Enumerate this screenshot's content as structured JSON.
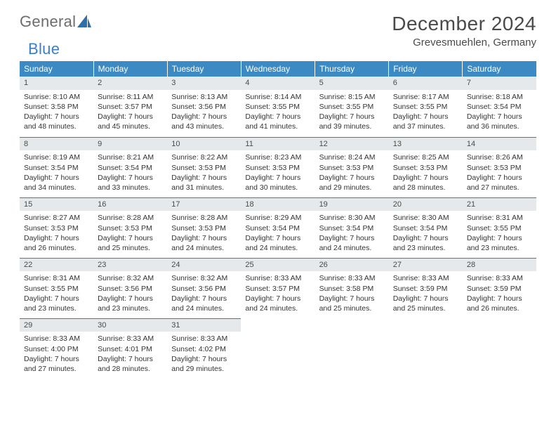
{
  "logo": {
    "text1": "General",
    "text2": "Blue"
  },
  "title": "December 2024",
  "location": "Grevesmuehlen, Germany",
  "colors": {
    "header_bg": "#3b8ac4",
    "header_text": "#ffffff",
    "row_divider": "#3b7fa8",
    "daynum_bg": "#e6e9eb",
    "body_text": "#333333",
    "logo_gray": "#6d6d6d",
    "logo_blue": "#3b7fc4"
  },
  "typography": {
    "title_fontsize": 28,
    "location_fontsize": 15,
    "dayheader_fontsize": 12,
    "cell_fontsize": 10.5
  },
  "day_headers": [
    "Sunday",
    "Monday",
    "Tuesday",
    "Wednesday",
    "Thursday",
    "Friday",
    "Saturday"
  ],
  "weeks": [
    [
      {
        "n": "1",
        "sr": "8:10 AM",
        "ss": "3:58 PM",
        "dh": "7",
        "dm": "48"
      },
      {
        "n": "2",
        "sr": "8:11 AM",
        "ss": "3:57 PM",
        "dh": "7",
        "dm": "45"
      },
      {
        "n": "3",
        "sr": "8:13 AM",
        "ss": "3:56 PM",
        "dh": "7",
        "dm": "43"
      },
      {
        "n": "4",
        "sr": "8:14 AM",
        "ss": "3:55 PM",
        "dh": "7",
        "dm": "41"
      },
      {
        "n": "5",
        "sr": "8:15 AM",
        "ss": "3:55 PM",
        "dh": "7",
        "dm": "39"
      },
      {
        "n": "6",
        "sr": "8:17 AM",
        "ss": "3:55 PM",
        "dh": "7",
        "dm": "37"
      },
      {
        "n": "7",
        "sr": "8:18 AM",
        "ss": "3:54 PM",
        "dh": "7",
        "dm": "36"
      }
    ],
    [
      {
        "n": "8",
        "sr": "8:19 AM",
        "ss": "3:54 PM",
        "dh": "7",
        "dm": "34"
      },
      {
        "n": "9",
        "sr": "8:21 AM",
        "ss": "3:54 PM",
        "dh": "7",
        "dm": "33"
      },
      {
        "n": "10",
        "sr": "8:22 AM",
        "ss": "3:53 PM",
        "dh": "7",
        "dm": "31"
      },
      {
        "n": "11",
        "sr": "8:23 AM",
        "ss": "3:53 PM",
        "dh": "7",
        "dm": "30"
      },
      {
        "n": "12",
        "sr": "8:24 AM",
        "ss": "3:53 PM",
        "dh": "7",
        "dm": "29"
      },
      {
        "n": "13",
        "sr": "8:25 AM",
        "ss": "3:53 PM",
        "dh": "7",
        "dm": "28"
      },
      {
        "n": "14",
        "sr": "8:26 AM",
        "ss": "3:53 PM",
        "dh": "7",
        "dm": "27"
      }
    ],
    [
      {
        "n": "15",
        "sr": "8:27 AM",
        "ss": "3:53 PM",
        "dh": "7",
        "dm": "26"
      },
      {
        "n": "16",
        "sr": "8:28 AM",
        "ss": "3:53 PM",
        "dh": "7",
        "dm": "25"
      },
      {
        "n": "17",
        "sr": "8:28 AM",
        "ss": "3:53 PM",
        "dh": "7",
        "dm": "24"
      },
      {
        "n": "18",
        "sr": "8:29 AM",
        "ss": "3:54 PM",
        "dh": "7",
        "dm": "24"
      },
      {
        "n": "19",
        "sr": "8:30 AM",
        "ss": "3:54 PM",
        "dh": "7",
        "dm": "24"
      },
      {
        "n": "20",
        "sr": "8:30 AM",
        "ss": "3:54 PM",
        "dh": "7",
        "dm": "23"
      },
      {
        "n": "21",
        "sr": "8:31 AM",
        "ss": "3:55 PM",
        "dh": "7",
        "dm": "23"
      }
    ],
    [
      {
        "n": "22",
        "sr": "8:31 AM",
        "ss": "3:55 PM",
        "dh": "7",
        "dm": "23"
      },
      {
        "n": "23",
        "sr": "8:32 AM",
        "ss": "3:56 PM",
        "dh": "7",
        "dm": "23"
      },
      {
        "n": "24",
        "sr": "8:32 AM",
        "ss": "3:56 PM",
        "dh": "7",
        "dm": "24"
      },
      {
        "n": "25",
        "sr": "8:33 AM",
        "ss": "3:57 PM",
        "dh": "7",
        "dm": "24"
      },
      {
        "n": "26",
        "sr": "8:33 AM",
        "ss": "3:58 PM",
        "dh": "7",
        "dm": "25"
      },
      {
        "n": "27",
        "sr": "8:33 AM",
        "ss": "3:59 PM",
        "dh": "7",
        "dm": "25"
      },
      {
        "n": "28",
        "sr": "8:33 AM",
        "ss": "3:59 PM",
        "dh": "7",
        "dm": "26"
      }
    ],
    [
      {
        "n": "29",
        "sr": "8:33 AM",
        "ss": "4:00 PM",
        "dh": "7",
        "dm": "27"
      },
      {
        "n": "30",
        "sr": "8:33 AM",
        "ss": "4:01 PM",
        "dh": "7",
        "dm": "28"
      },
      {
        "n": "31",
        "sr": "8:33 AM",
        "ss": "4:02 PM",
        "dh": "7",
        "dm": "29"
      },
      null,
      null,
      null,
      null
    ]
  ],
  "labels": {
    "sunrise": "Sunrise: ",
    "sunset": "Sunset: ",
    "daylight_pre": "Daylight: ",
    "hours": " hours",
    "and": "and ",
    "minutes": " minutes."
  }
}
